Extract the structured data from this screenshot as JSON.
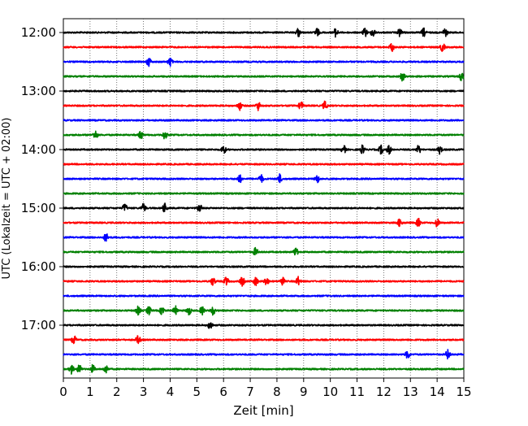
{
  "chart_data": {
    "type": "line",
    "xlabel": "Zeit  [min]",
    "ylabel": "UTC (Lokalzeit = UTC + 02:00)",
    "xlim": [
      0,
      15
    ],
    "x_ticks": [
      0,
      1,
      2,
      3,
      4,
      5,
      6,
      7,
      8,
      9,
      10,
      11,
      12,
      13,
      14,
      15
    ],
    "x_tick_labels": [
      "0",
      "1",
      "2",
      "3",
      "4",
      "5",
      "6",
      "7",
      "8",
      "9",
      "10",
      "11",
      "12",
      "13",
      "14",
      "15"
    ],
    "y_tick_labels": [
      "12:00",
      "13:00",
      "14:00",
      "15:00",
      "16:00",
      "17:00"
    ],
    "grid": "vertical-dotted",
    "trace_minutes": 15,
    "trace_count": 24,
    "trace_colors": [
      "#000000",
      "#ff0000",
      "#0000ff",
      "#008000"
    ],
    "events_min": [
      [
        8.8,
        9.5,
        10.2,
        11.3,
        11.6,
        12.6,
        13.5,
        14.3
      ],
      [
        12.3,
        14.2
      ],
      [
        3.2,
        4.0
      ],
      [
        12.7,
        14.9
      ],
      [],
      [
        6.6,
        7.3,
        8.9,
        9.8
      ],
      [],
      [
        1.2,
        2.9,
        3.8
      ],
      [
        6.0,
        10.5,
        11.2,
        11.9,
        12.2,
        13.3,
        14.1
      ],
      [],
      [
        6.6,
        7.4,
        8.1,
        9.5
      ],
      [],
      [
        2.3,
        3.0,
        3.8,
        5.1
      ],
      [
        12.6,
        13.3,
        14.0
      ],
      [
        1.6
      ],
      [
        7.2,
        8.7
      ],
      [],
      [
        5.6,
        6.1,
        6.7,
        7.2,
        7.6,
        8.2,
        8.8
      ],
      [],
      [
        2.8,
        3.2,
        3.7,
        4.2,
        4.7,
        5.2,
        5.6
      ],
      [
        5.5
      ],
      [
        0.4,
        2.8
      ],
      [
        12.9,
        14.4
      ],
      [
        0.3,
        0.6,
        1.1,
        1.6
      ]
    ]
  }
}
